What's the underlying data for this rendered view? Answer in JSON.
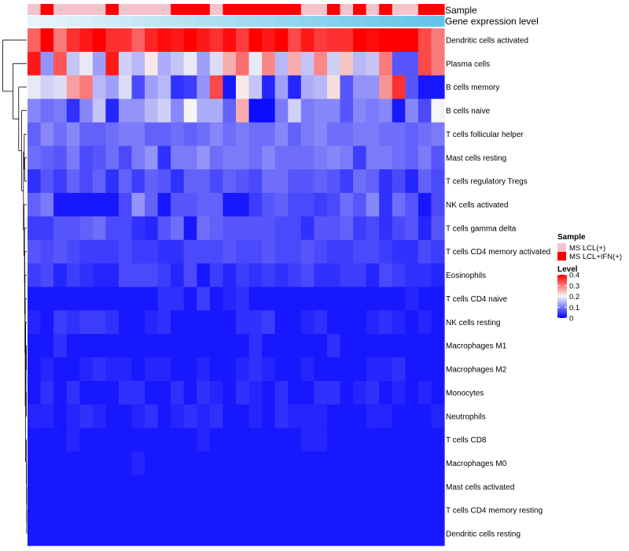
{
  "chart_data": {
    "type": "heatmap",
    "title": "",
    "rows": [
      "Dendritic cells activated",
      "Plasma cells",
      "B cells memory",
      "B cells naive",
      "T cells follicular helper",
      "Mast cells resting",
      "T cells regulatory  Tregs",
      "NK cells activated",
      "T cells gamma delta",
      "T cells CD4 memory activated",
      "Eosinophils",
      "T cells CD4 naive",
      "NK cells resting",
      "Macrophages M1",
      "Macrophages M2",
      "Monocytes",
      "Neutrophils",
      "T cells CD8",
      "Macrophages M0",
      "Mast cells activated",
      "T cells CD4 memory resting",
      "Dendritic cells resting"
    ],
    "sample_groups": [
      "MS LCL(+)",
      "MS LCL+IFN(+)",
      "MS LCL(+)",
      "MS LCL(+)",
      "MS LCL(+)",
      "MS LCL(+)",
      "MS LCL+IFN(+)",
      "MS LCL(+)",
      "MS LCL(+)",
      "MS LCL(+)",
      "MS LCL(+)",
      "MS LCL+IFN(+)",
      "MS LCL+IFN(+)",
      "MS LCL+IFN(+)",
      "MS LCL(+)",
      "MS LCL+IFN(+)",
      "MS LCL+IFN(+)",
      "MS LCL+IFN(+)",
      "MS LCL+IFN(+)",
      "MS LCL+IFN(+)",
      "MS LCL+IFN(+)",
      "MS LCL(+)",
      "MS LCL(+)",
      "MS LCL+IFN(+)",
      "MS LCL(+)",
      "MS LCL+IFN(+)",
      "MS LCL(+)",
      "MS LCL+IFN(+)",
      "MS LCL(+)",
      "MS LCL(+)",
      "MS LCL+IFN(+)",
      "MS LCL+IFN(+)"
    ],
    "gene_expression_level": [
      0.02,
      0.05,
      0.08,
      0.11,
      0.14,
      0.17,
      0.2,
      0.23,
      0.26,
      0.29,
      0.32,
      0.35,
      0.38,
      0.41,
      0.44,
      0.47,
      0.5,
      0.53,
      0.56,
      0.59,
      0.62,
      0.65,
      0.68,
      0.71,
      0.74,
      0.77,
      0.8,
      0.83,
      0.86,
      0.89,
      0.92,
      0.95
    ],
    "values": [
      [
        0.32,
        0.4,
        0.3,
        0.36,
        0.38,
        0.4,
        0.36,
        0.36,
        0.32,
        0.37,
        0.39,
        0.38,
        0.4,
        0.38,
        0.36,
        0.39,
        0.35,
        0.4,
        0.38,
        0.4,
        0.34,
        0.38,
        0.35,
        0.36,
        0.36,
        0.4,
        0.39,
        0.4,
        0.4,
        0.4,
        0.34,
        0.3
      ],
      [
        0.38,
        0.12,
        0.33,
        0.16,
        0.19,
        0.13,
        0.38,
        0.17,
        0.15,
        0.21,
        0.14,
        0.16,
        0.19,
        0.13,
        0.18,
        0.26,
        0.31,
        0.19,
        0.29,
        0.15,
        0.26,
        0.16,
        0.29,
        0.17,
        0.24,
        0.15,
        0.16,
        0.3,
        0.07,
        0.07,
        0.34,
        0.3
      ],
      [
        0.19,
        0.17,
        0.18,
        0.27,
        0.3,
        0.15,
        0.13,
        0.18,
        0.06,
        0.13,
        0.15,
        0.04,
        0.05,
        0.12,
        0.34,
        0.02,
        0.21,
        0.16,
        0.03,
        0.13,
        0.03,
        0.14,
        0.15,
        0.22,
        0.07,
        0.12,
        0.12,
        0.28,
        0.36,
        0.07,
        0.02,
        0.02
      ],
      [
        0.11,
        0.09,
        0.1,
        0.04,
        0.11,
        0.16,
        0.03,
        0.12,
        0.12,
        0.15,
        0.17,
        0.11,
        0.2,
        0.14,
        0.14,
        0.08,
        0.26,
        0.01,
        0.01,
        0.1,
        0.17,
        0.1,
        0.11,
        0.11,
        0.07,
        0.11,
        0.1,
        0.11,
        0.02,
        0.11,
        0.06,
        0.2
      ],
      [
        0.08,
        0.11,
        0.09,
        0.11,
        0.08,
        0.08,
        0.09,
        0.1,
        0.1,
        0.08,
        0.08,
        0.09,
        0.08,
        0.09,
        0.11,
        0.09,
        0.1,
        0.09,
        0.09,
        0.11,
        0.08,
        0.1,
        0.11,
        0.09,
        0.09,
        0.1,
        0.1,
        0.09,
        0.09,
        0.08,
        0.09,
        0.1
      ],
      [
        0.09,
        0.08,
        0.07,
        0.1,
        0.06,
        0.07,
        0.09,
        0.06,
        0.1,
        0.12,
        0.04,
        0.1,
        0.1,
        0.12,
        0.09,
        0.1,
        0.1,
        0.09,
        0.11,
        0.09,
        0.09,
        0.09,
        0.1,
        0.11,
        0.1,
        0.05,
        0.1,
        0.1,
        0.09,
        0.08,
        0.1,
        0.07
      ],
      [
        0.04,
        0.07,
        0.05,
        0.08,
        0.06,
        0.08,
        0.04,
        0.08,
        0.05,
        0.08,
        0.07,
        0.04,
        0.08,
        0.08,
        0.06,
        0.08,
        0.07,
        0.06,
        0.09,
        0.09,
        0.07,
        0.07,
        0.08,
        0.07,
        0.05,
        0.09,
        0.08,
        0.04,
        0.06,
        0.03,
        0.08,
        0.06
      ],
      [
        0.08,
        0.1,
        0.02,
        0.02,
        0.02,
        0.02,
        0.02,
        0.06,
        0.12,
        0.08,
        0.02,
        0.07,
        0.07,
        0.08,
        0.08,
        0.02,
        0.02,
        0.05,
        0.07,
        0.08,
        0.06,
        0.06,
        0.05,
        0.06,
        0.09,
        0.07,
        0.11,
        0.04,
        0.09,
        0.07,
        0.02,
        0.06
      ],
      [
        0.05,
        0.05,
        0.07,
        0.07,
        0.08,
        0.09,
        0.06,
        0.06,
        0.04,
        0.03,
        0.07,
        0.09,
        0.02,
        0.09,
        0.08,
        0.07,
        0.07,
        0.07,
        0.07,
        0.06,
        0.06,
        0.04,
        0.07,
        0.07,
        0.08,
        0.05,
        0.06,
        0.04,
        0.06,
        0.07,
        0.03,
        0.07
      ],
      [
        0.07,
        0.06,
        0.07,
        0.06,
        0.05,
        0.05,
        0.05,
        0.06,
        0.05,
        0.05,
        0.04,
        0.04,
        0.06,
        0.06,
        0.06,
        0.07,
        0.06,
        0.06,
        0.07,
        0.06,
        0.06,
        0.07,
        0.06,
        0.05,
        0.05,
        0.06,
        0.06,
        0.05,
        0.04,
        0.04,
        0.06,
        0.05
      ],
      [
        0.05,
        0.06,
        0.03,
        0.05,
        0.04,
        0.03,
        0.03,
        0.06,
        0.06,
        0.06,
        0.05,
        0.03,
        0.06,
        0.02,
        0.05,
        0.03,
        0.05,
        0.04,
        0.05,
        0.04,
        0.05,
        0.06,
        0.04,
        0.04,
        0.05,
        0.05,
        0.03,
        0.06,
        0.05,
        0.04,
        0.04,
        0.03
      ],
      [
        0.02,
        0.02,
        0.02,
        0.02,
        0.02,
        0.02,
        0.02,
        0.02,
        0.02,
        0.02,
        0.04,
        0.04,
        0.02,
        0.05,
        0.02,
        0.03,
        0.04,
        0.02,
        0.02,
        0.02,
        0.02,
        0.02,
        0.02,
        0.02,
        0.02,
        0.02,
        0.02,
        0.02,
        0.02,
        0.03,
        0.02,
        0.02
      ],
      [
        0.03,
        0.02,
        0.05,
        0.04,
        0.05,
        0.05,
        0.04,
        0.02,
        0.02,
        0.03,
        0.04,
        0.02,
        0.02,
        0.02,
        0.02,
        0.02,
        0.04,
        0.04,
        0.05,
        0.02,
        0.02,
        0.03,
        0.04,
        0.02,
        0.02,
        0.02,
        0.03,
        0.04,
        0.03,
        0.02,
        0.03,
        0.02
      ],
      [
        0.02,
        0.02,
        0.04,
        0.02,
        0.02,
        0.02,
        0.02,
        0.02,
        0.02,
        0.02,
        0.02,
        0.02,
        0.02,
        0.02,
        0.02,
        0.02,
        0.02,
        0.04,
        0.02,
        0.02,
        0.02,
        0.02,
        0.02,
        0.04,
        0.02,
        0.02,
        0.02,
        0.02,
        0.02,
        0.02,
        0.02,
        0.02
      ],
      [
        0.02,
        0.03,
        0.02,
        0.02,
        0.03,
        0.04,
        0.03,
        0.03,
        0.02,
        0.03,
        0.03,
        0.02,
        0.02,
        0.03,
        0.02,
        0.02,
        0.03,
        0.04,
        0.03,
        0.02,
        0.02,
        0.03,
        0.02,
        0.02,
        0.02,
        0.02,
        0.03,
        0.03,
        0.04,
        0.02,
        0.02,
        0.02
      ],
      [
        0.02,
        0.04,
        0.02,
        0.04,
        0.02,
        0.02,
        0.02,
        0.04,
        0.04,
        0.02,
        0.02,
        0.04,
        0.02,
        0.04,
        0.03,
        0.02,
        0.04,
        0.03,
        0.02,
        0.04,
        0.02,
        0.02,
        0.04,
        0.04,
        0.02,
        0.03,
        0.04,
        0.02,
        0.03,
        0.02,
        0.03,
        0.02
      ],
      [
        0.03,
        0.03,
        0.02,
        0.03,
        0.04,
        0.03,
        0.02,
        0.02,
        0.03,
        0.04,
        0.02,
        0.03,
        0.04,
        0.03,
        0.04,
        0.02,
        0.02,
        0.03,
        0.02,
        0.04,
        0.03,
        0.03,
        0.03,
        0.02,
        0.02,
        0.02,
        0.03,
        0.03,
        0.02,
        0.02,
        0.02,
        0.03
      ],
      [
        0.02,
        0.02,
        0.02,
        0.03,
        0.02,
        0.02,
        0.02,
        0.02,
        0.02,
        0.02,
        0.02,
        0.02,
        0.02,
        0.03,
        0.02,
        0.02,
        0.02,
        0.02,
        0.02,
        0.02,
        0.02,
        0.03,
        0.03,
        0.02,
        0.02,
        0.02,
        0.02,
        0.02,
        0.02,
        0.02,
        0.02,
        0.02
      ],
      [
        0.02,
        0.02,
        0.02,
        0.02,
        0.02,
        0.02,
        0.02,
        0.02,
        0.03,
        0.02,
        0.02,
        0.02,
        0.02,
        0.02,
        0.02,
        0.02,
        0.02,
        0.02,
        0.02,
        0.02,
        0.02,
        0.02,
        0.02,
        0.02,
        0.02,
        0.02,
        0.02,
        0.02,
        0.02,
        0.02,
        0.02,
        0.02
      ],
      [
        0.02,
        0.02,
        0.02,
        0.02,
        0.02,
        0.02,
        0.02,
        0.02,
        0.02,
        0.02,
        0.02,
        0.02,
        0.02,
        0.02,
        0.02,
        0.02,
        0.02,
        0.02,
        0.02,
        0.02,
        0.02,
        0.02,
        0.02,
        0.02,
        0.02,
        0.02,
        0.02,
        0.02,
        0.02,
        0.02,
        0.02,
        0.02
      ],
      [
        0.02,
        0.02,
        0.02,
        0.02,
        0.02,
        0.02,
        0.02,
        0.02,
        0.02,
        0.02,
        0.02,
        0.02,
        0.02,
        0.02,
        0.02,
        0.02,
        0.02,
        0.02,
        0.02,
        0.02,
        0.02,
        0.02,
        0.02,
        0.02,
        0.02,
        0.02,
        0.02,
        0.02,
        0.02,
        0.02,
        0.02,
        0.02
      ],
      [
        0.02,
        0.02,
        0.02,
        0.02,
        0.02,
        0.02,
        0.02,
        0.02,
        0.02,
        0.02,
        0.02,
        0.02,
        0.02,
        0.02,
        0.02,
        0.02,
        0.02,
        0.02,
        0.02,
        0.02,
        0.02,
        0.02,
        0.02,
        0.02,
        0.02,
        0.02,
        0.02,
        0.02,
        0.02,
        0.02,
        0.02,
        0.02
      ]
    ],
    "color_scale": {
      "min": 0,
      "mid": 0.2,
      "max": 0.4,
      "low_color": "#0000ff",
      "mid_color": "#f5f5f5",
      "high_color": "#ff0000"
    },
    "annotations": {
      "sample_label": "Sample",
      "gene_label": "Gene expression level",
      "gene_color_low": "#eaf6fb",
      "gene_color_high": "#5bc2e7"
    },
    "legend": {
      "position": "right",
      "sample_title": "Sample",
      "sample_items": [
        {
          "label": "MS LCL(+)",
          "color": "#f6c2cc"
        },
        {
          "label": "MS LCL+IFN(+)",
          "color": "#ff0000"
        }
      ],
      "level_title": "Level",
      "level_ticks": [
        "0.4",
        "0.3",
        "0.2",
        "0.1",
        "0"
      ],
      "level_tick_values": [
        0.4,
        0.3,
        0.2,
        0.1,
        0
      ]
    },
    "dendrogram": "row clustering tree (left)"
  }
}
